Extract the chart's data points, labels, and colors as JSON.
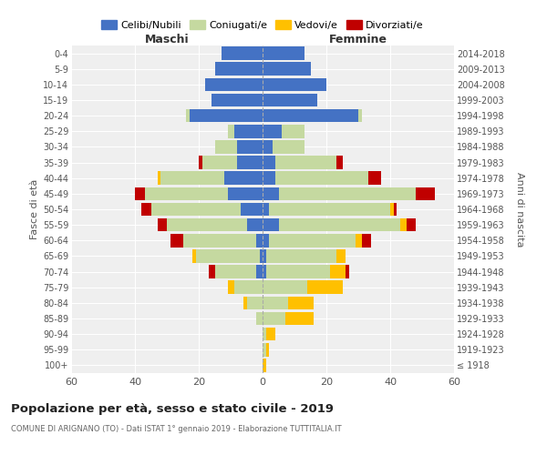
{
  "age_groups": [
    "100+",
    "95-99",
    "90-94",
    "85-89",
    "80-84",
    "75-79",
    "70-74",
    "65-69",
    "60-64",
    "55-59",
    "50-54",
    "45-49",
    "40-44",
    "35-39",
    "30-34",
    "25-29",
    "20-24",
    "15-19",
    "10-14",
    "5-9",
    "0-4"
  ],
  "birth_years": [
    "≤ 1918",
    "1919-1923",
    "1924-1928",
    "1929-1933",
    "1934-1938",
    "1939-1943",
    "1944-1948",
    "1949-1953",
    "1954-1958",
    "1959-1963",
    "1964-1968",
    "1969-1973",
    "1974-1978",
    "1979-1983",
    "1984-1988",
    "1989-1993",
    "1994-1998",
    "1999-2003",
    "2004-2008",
    "2009-2013",
    "2014-2018"
  ],
  "maschi": {
    "celibe": [
      0,
      0,
      0,
      0,
      0,
      0,
      2,
      1,
      2,
      5,
      7,
      11,
      12,
      8,
      8,
      9,
      23,
      16,
      18,
      15,
      13
    ],
    "coniugato": [
      0,
      0,
      0,
      2,
      5,
      9,
      13,
      20,
      23,
      25,
      28,
      26,
      20,
      11,
      7,
      2,
      1,
      0,
      0,
      0,
      0
    ],
    "vedovo": [
      0,
      0,
      0,
      0,
      1,
      2,
      0,
      1,
      0,
      0,
      0,
      0,
      1,
      0,
      0,
      0,
      0,
      0,
      0,
      0,
      0
    ],
    "divorziato": [
      0,
      0,
      0,
      0,
      0,
      0,
      2,
      0,
      4,
      3,
      3,
      3,
      0,
      1,
      0,
      0,
      0,
      0,
      0,
      0,
      0
    ]
  },
  "femmine": {
    "nubile": [
      0,
      0,
      0,
      0,
      0,
      0,
      1,
      1,
      2,
      5,
      2,
      5,
      4,
      4,
      3,
      6,
      30,
      17,
      20,
      15,
      13
    ],
    "coniugata": [
      0,
      1,
      1,
      7,
      8,
      14,
      20,
      22,
      27,
      38,
      38,
      43,
      29,
      19,
      10,
      7,
      1,
      0,
      0,
      0,
      0
    ],
    "vedova": [
      1,
      1,
      3,
      9,
      8,
      11,
      5,
      3,
      2,
      2,
      1,
      0,
      0,
      0,
      0,
      0,
      0,
      0,
      0,
      0,
      0
    ],
    "divorziata": [
      0,
      0,
      0,
      0,
      0,
      0,
      1,
      0,
      3,
      3,
      1,
      6,
      4,
      2,
      0,
      0,
      0,
      0,
      0,
      0,
      0
    ]
  },
  "colors": {
    "celibe": "#4472c4",
    "coniugato": "#c5d9a0",
    "vedovo": "#ffc000",
    "divorziato": "#c00000"
  },
  "title": "Popolazione per età, sesso e stato civile - 2019",
  "subtitle": "COMUNE DI ARIGNANO (TO) - Dati ISTAT 1° gennaio 2019 - Elaborazione TUTTITALIA.IT",
  "ylabel_left": "Fasce di età",
  "ylabel_right": "Anni di nascita",
  "xlabel_left": "Maschi",
  "xlabel_right": "Femmine",
  "xlim": 60,
  "legend_labels": [
    "Celibi/Nubili",
    "Coniugati/e",
    "Vedovi/e",
    "Divorziati/e"
  ],
  "background_color": "#ffffff",
  "plot_bg_color": "#efefef"
}
